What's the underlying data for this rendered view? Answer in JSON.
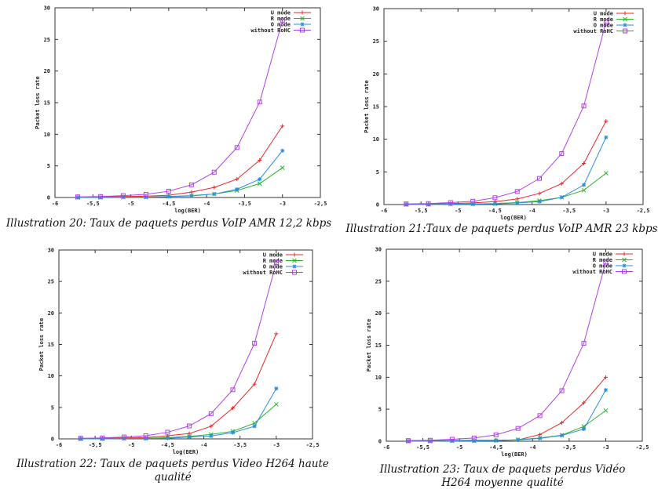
{
  "chart_data": [
    {
      "type": "line",
      "caption": "Illustration  20: Taux de paquets perdus VoIP AMR 12,2 kbps",
      "xlabel": "log(BER)",
      "ylabel": "Packet loss rate",
      "xlim": [
        -6,
        -2.5
      ],
      "ylim": [
        0,
        30
      ],
      "xticks": [
        "-6",
        "-5.5",
        "-5",
        "-4.5",
        "-4",
        "-3.5",
        "-3",
        "-2.5"
      ],
      "yticks": [
        "0",
        "5",
        "10",
        "15",
        "20",
        "25",
        "30"
      ],
      "legend_position": "top-right",
      "x": [
        -5.7,
        -5.4,
        -5.1,
        -4.8,
        -4.5,
        -4.2,
        -3.9,
        -3.6,
        -3.3,
        -3.0
      ],
      "series": [
        {
          "name": "U mode",
          "color": "#e8272a",
          "marker": "plus",
          "values": [
            0.05,
            0.1,
            0.15,
            0.2,
            0.35,
            0.85,
            1.6,
            2.9,
            5.9,
            11.3
          ]
        },
        {
          "name": "R mode",
          "color": "#2bb52b",
          "marker": "cross",
          "values": [
            0,
            0,
            0.05,
            0.05,
            0.15,
            0.3,
            0.55,
            1.1,
            2.2,
            4.7
          ]
        },
        {
          "name": "O mode",
          "color": "#2a8ee0",
          "marker": "star",
          "values": [
            0,
            0,
            0.05,
            0.05,
            0.15,
            0.25,
            0.55,
            1.3,
            2.9,
            7.4
          ]
        },
        {
          "name": "without RoHC",
          "color": "#b040e8",
          "marker": "square",
          "values": [
            0.1,
            0.15,
            0.3,
            0.5,
            1.0,
            2.0,
            4.0,
            7.9,
            15.1,
            28.0
          ]
        }
      ]
    },
    {
      "type": "line",
      "caption": "Illustration  21:Taux de paquets perdus VoIP AMR 23 kbps",
      "xlabel": "log(BER)",
      "ylabel": "Packet loss rate",
      "xlim": [
        -6,
        -2.5
      ],
      "ylim": [
        0,
        30
      ],
      "xticks": [
        "-6",
        "-5.5",
        "-5",
        "-4.5",
        "-4",
        "-3.5",
        "-3",
        "-2.5"
      ],
      "yticks": [
        "0",
        "5",
        "10",
        "15",
        "20",
        "25",
        "30"
      ],
      "legend_position": "top-right",
      "x": [
        -5.7,
        -5.4,
        -5.1,
        -4.8,
        -4.5,
        -4.2,
        -3.9,
        -3.6,
        -3.3,
        -3.0
      ],
      "series": [
        {
          "name": "U mode",
          "color": "#e8272a",
          "marker": "plus",
          "values": [
            0.05,
            0.1,
            0.15,
            0.25,
            0.45,
            0.85,
            1.7,
            3.2,
            6.3,
            12.8
          ]
        },
        {
          "name": "R mode",
          "color": "#2bb52b",
          "marker": "cross",
          "values": [
            0,
            0,
            0.05,
            0.1,
            0.15,
            0.3,
            0.6,
            1.1,
            2.2,
            4.8
          ]
        },
        {
          "name": "O mode",
          "color": "#2a8ee0",
          "marker": "star",
          "values": [
            0,
            0,
            0.05,
            0.05,
            0.1,
            0.25,
            0.45,
            1.1,
            3.0,
            10.3
          ]
        },
        {
          "name": "without RoHC",
          "color": "#b040e8",
          "marker": "square",
          "values": [
            0.1,
            0.15,
            0.3,
            0.5,
            1.05,
            2.0,
            4.0,
            7.8,
            15.1,
            28.0
          ]
        }
      ]
    },
    {
      "type": "line",
      "caption": "Illustration  22: Taux de paquets perdus Video H264 haute qualité",
      "xlabel": "log(BER)",
      "ylabel": "Packet loss rate",
      "xlim": [
        -6,
        -2.5
      ],
      "ylim": [
        0,
        30
      ],
      "xticks": [
        "-6",
        "-5.5",
        "-5",
        "-4.5",
        "-4",
        "-3.5",
        "-3",
        "-2.5"
      ],
      "yticks": [
        "0",
        "5",
        "10",
        "15",
        "20",
        "25",
        "30"
      ],
      "legend_position": "top-right",
      "x": [
        -5.7,
        -5.4,
        -5.1,
        -4.8,
        -4.5,
        -4.2,
        -3.9,
        -3.6,
        -3.3,
        -3.0
      ],
      "series": [
        {
          "name": "U mode",
          "color": "#e8272a",
          "marker": "plus",
          "values": [
            0.05,
            0.1,
            0.15,
            0.2,
            0.5,
            0.85,
            2.0,
            4.9,
            8.7,
            16.7
          ]
        },
        {
          "name": "R mode",
          "color": "#2bb52b",
          "marker": "cross",
          "values": [
            0,
            0,
            0.05,
            0.1,
            0.2,
            0.4,
            0.7,
            1.2,
            2.5,
            5.5
          ]
        },
        {
          "name": "O mode",
          "color": "#2a8ee0",
          "marker": "star",
          "values": [
            0,
            0,
            0.05,
            0.05,
            0.1,
            0.3,
            0.45,
            1.0,
            2.0,
            8.0
          ]
        },
        {
          "name": "without RoHC",
          "color": "#b040e8",
          "marker": "square",
          "values": [
            0.1,
            0.15,
            0.3,
            0.5,
            1.05,
            2.05,
            4.0,
            7.8,
            15.2,
            28.0
          ]
        }
      ]
    },
    {
      "type": "line",
      "caption": "Illustration  23: Taux de paquets perdus Vidéo H264 moyenne qualité",
      "xlabel": "log(BER)",
      "ylabel": "Packet loss rate",
      "xlim": [
        -6,
        -2.5
      ],
      "ylim": [
        0,
        30
      ],
      "xticks": [
        "-6",
        "-5.5",
        "-5",
        "-4.5",
        "-4",
        "-3.5",
        "-3",
        "-2.5"
      ],
      "yticks": [
        "0",
        "5",
        "10",
        "15",
        "20",
        "25",
        "30"
      ],
      "legend_position": "top-right",
      "x": [
        -5.7,
        -5.4,
        -5.1,
        -4.8,
        -4.5,
        -4.2,
        -3.9,
        -3.6,
        -3.3,
        -3.0
      ],
      "series": [
        {
          "name": "U mode",
          "color": "#e8272a",
          "marker": "plus",
          "values": [
            0.05,
            0.1,
            0.1,
            0.15,
            0.15,
            0.2,
            1.05,
            2.9,
            6.0,
            10.0
          ]
        },
        {
          "name": "R mode",
          "color": "#2bb52b",
          "marker": "cross",
          "values": [
            0,
            0,
            0.05,
            0.05,
            0.1,
            0.25,
            0.5,
            0.95,
            2.3,
            4.8
          ]
        },
        {
          "name": "O mode",
          "color": "#2a8ee0",
          "marker": "star",
          "values": [
            0,
            0,
            0.05,
            0.05,
            0.1,
            0.2,
            0.45,
            0.9,
            1.9,
            8.0
          ]
        },
        {
          "name": "without RoHC",
          "color": "#b040e8",
          "marker": "square",
          "values": [
            0.1,
            0.15,
            0.3,
            0.5,
            1.0,
            2.0,
            4.0,
            7.9,
            15.3,
            28.0
          ]
        }
      ]
    }
  ]
}
